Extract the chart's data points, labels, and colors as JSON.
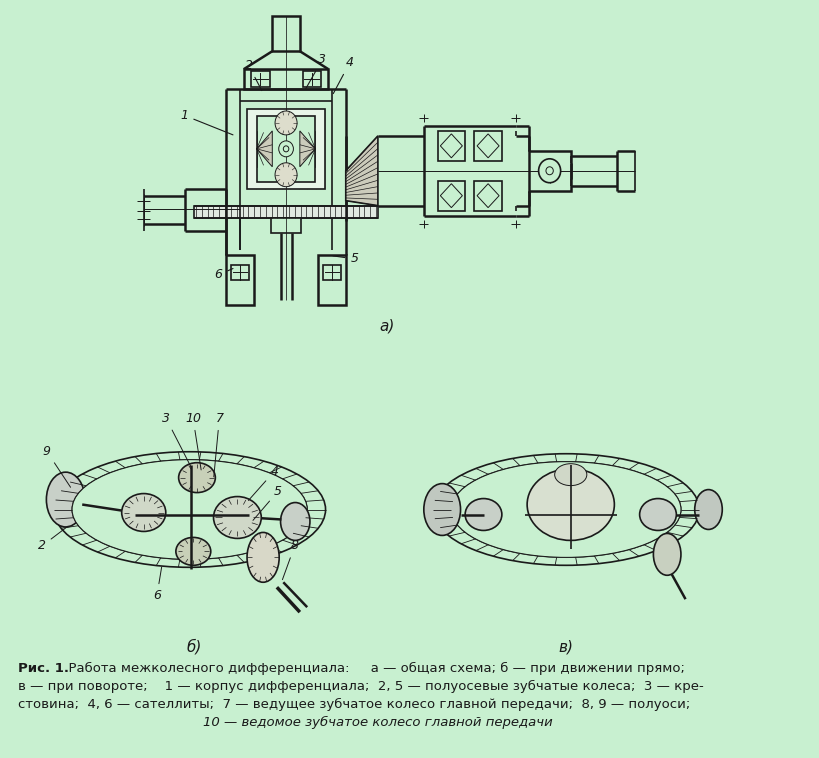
{
  "background_color": "#c8f0d0",
  "fig_width": 8.2,
  "fig_height": 7.58,
  "dpi": 100,
  "caption_bold": "Рис. 1.",
  "caption_rest_line1": "  Работа межколесного дифференциала:     а — общая схема; б — при движении прямо;",
  "caption_line2": "в — при повороте;    1 — корпус дифференциала;  2, 5 — полуосевые зубчатые колеса;  3 — кре-",
  "caption_line3": "стовина;  4, 6 — сателлиты;  7 — ведущее зубчатое колесо главной передачи;  8, 9 — полуоси;",
  "caption_line4": "10 — ведомое зубчатое колесо главной передачи",
  "label_a": "а)",
  "label_b": "б)",
  "label_v": "в)"
}
